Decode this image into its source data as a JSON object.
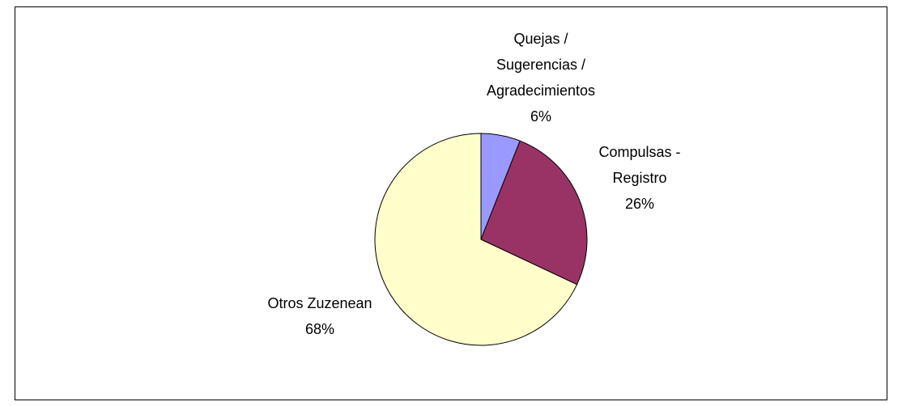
{
  "chart_data": {
    "type": "pie",
    "categories": [
      "Quejas / Sugerencias / Agradecimientos",
      "Compulsas - Registro",
      "Otros Zuzenean"
    ],
    "values": [
      6,
      26,
      68
    ],
    "value_labels": [
      "6%",
      "26%",
      "68%"
    ],
    "colors": [
      "#9999ff",
      "#993366",
      "#ffffcc"
    ]
  }
}
